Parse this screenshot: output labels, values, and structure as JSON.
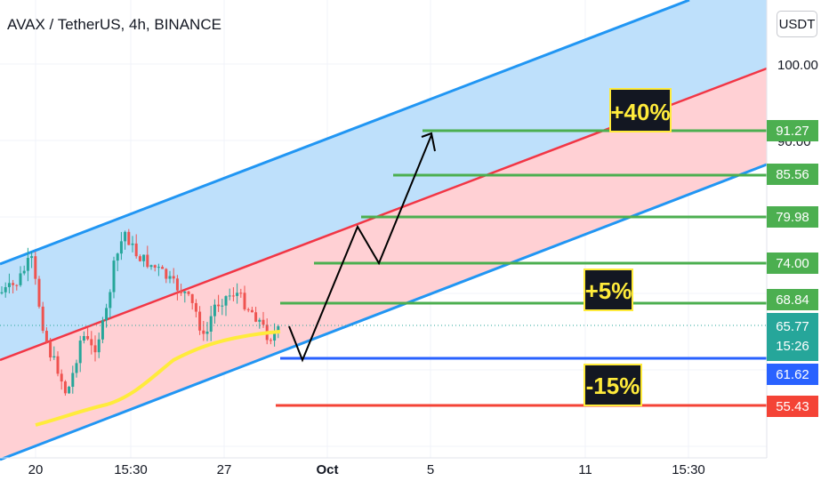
{
  "header": {
    "symbol_title": "AVAX / TetherUS, 4h, BINANCE",
    "currency_button": "USDT"
  },
  "colors": {
    "green": "#4caf50",
    "red": "#f44336",
    "blue": "#2962ff",
    "channel_blue": "#2196f3",
    "channel_red": "#f23645",
    "ma_yellow": "#ffeb3b",
    "candle_up": "#26a69a",
    "candle_down": "#ef5350",
    "teal_label": "#26a69a",
    "annotation_bg": "#131722",
    "annotation_text": "#ffeb3b"
  },
  "chart_data": {
    "type": "candlestick",
    "x_ticks": [
      "20",
      "15:30",
      "27",
      "Oct",
      "5",
      "11",
      "15:30"
    ],
    "y_ticks": [
      100.0,
      90.0
    ],
    "price_levels": [
      {
        "value": 91.27,
        "label": "91.27",
        "color": "#4caf50"
      },
      {
        "value": 85.56,
        "label": "85.56",
        "color": "#4caf50"
      },
      {
        "value": 79.98,
        "label": "79.98",
        "color": "#4caf50"
      },
      {
        "value": 74.0,
        "label": "74.00",
        "color": "#4caf50"
      },
      {
        "value": 68.84,
        "label": "68.84",
        "color": "#4caf50"
      },
      {
        "value": 61.62,
        "label": "61.62",
        "color": "#2962ff"
      },
      {
        "value": 55.43,
        "label": "55.43",
        "color": "#f44336"
      }
    ],
    "current_price": {
      "value": 65.77,
      "label": "65.77",
      "countdown": "15:26"
    },
    "annotations": [
      "+40%",
      "+5%",
      "-15%"
    ]
  }
}
